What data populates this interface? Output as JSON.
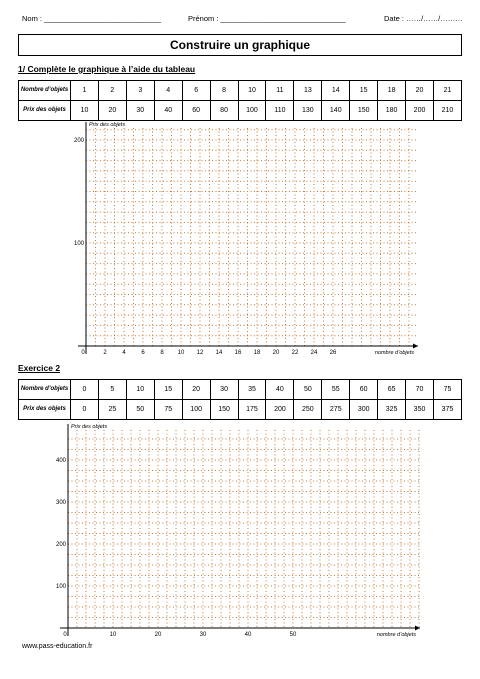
{
  "header": {
    "nom": "Nom : ____________________________",
    "prenom": "Prénom : ______________________________",
    "date": "Date : ……/……/………"
  },
  "title": "Construire un graphique",
  "exercise1": {
    "heading": "1/ Complète le graphique à l’aide du tableau",
    "row1_label": "Nombre d’objets",
    "row2_label": "Prix des objets",
    "nombre": [
      "1",
      "2",
      "3",
      "4",
      "6",
      "8",
      "10",
      "11",
      "13",
      "14",
      "15",
      "18",
      "20",
      "21"
    ],
    "prix": [
      "10",
      "20",
      "30",
      "40",
      "60",
      "80",
      "100",
      "110",
      "130",
      "140",
      "150",
      "180",
      "200",
      "210"
    ],
    "graph": {
      "y_axis_label": "Prix des objets",
      "x_axis_label": "nombre d’objets",
      "y_ticks": [
        "200",
        "100"
      ],
      "x_ticks": [
        "0",
        "2",
        "4",
        "6",
        "8",
        "10",
        "12",
        "14",
        "16",
        "18",
        "20",
        "22",
        "24",
        "26"
      ]
    }
  },
  "exercise2": {
    "heading": "Exercice 2",
    "row1_label": "Nombre d’objets",
    "row2_label": "Prix des objets",
    "nombre": [
      "0",
      "5",
      "10",
      "15",
      "20",
      "30",
      "35",
      "40",
      "50",
      "55",
      "60",
      "65",
      "70",
      "75"
    ],
    "prix": [
      "0",
      "25",
      "50",
      "75",
      "100",
      "150",
      "175",
      "200",
      "250",
      "275",
      "300",
      "325",
      "350",
      "375"
    ],
    "graph": {
      "y_axis_label": "Prix des objets",
      "x_axis_label": "nombre d’objets",
      "y_ticks": [
        "400",
        "300",
        "200",
        "100"
      ],
      "x_ticks": [
        "0",
        "10",
        "20",
        "30",
        "40",
        "50"
      ]
    }
  },
  "footer": "www.pass-education.fr",
  "colors": {
    "grid": "#c97a36",
    "axis": "#000000"
  }
}
